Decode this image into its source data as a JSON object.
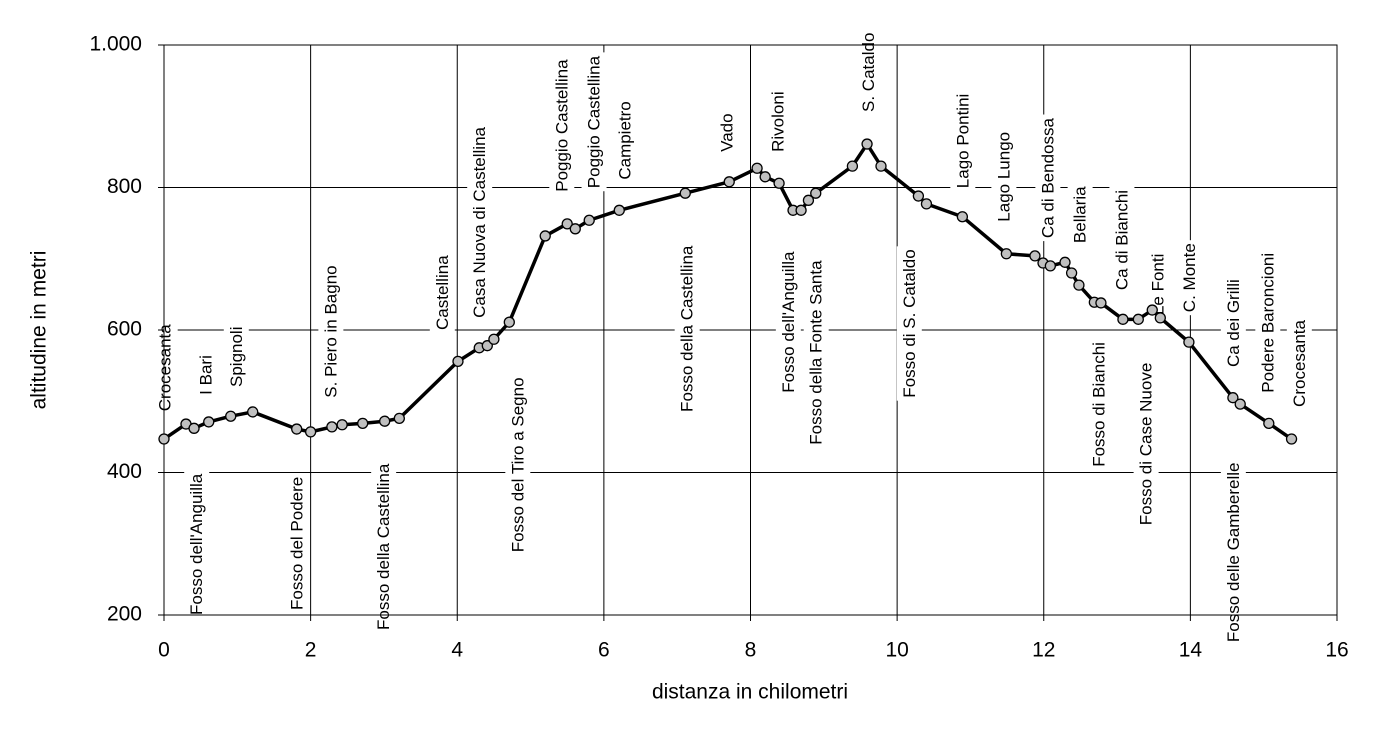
{
  "chart_data": {
    "type": "line",
    "xlabel": "distanza in chilometri",
    "ylabel": "altitudine  in metri",
    "x": [
      0,
      0.3,
      0.41,
      0.61,
      0.91,
      1.21,
      1.81,
      2.0,
      2.29,
      2.43,
      2.71,
      3.01,
      3.21,
      4.01,
      4.3,
      4.41,
      4.5,
      4.71,
      5.2,
      5.5,
      5.61,
      5.8,
      6.21,
      7.11,
      7.71,
      8.09,
      8.2,
      8.39,
      8.58,
      8.69,
      8.79,
      8.89,
      9.39,
      9.59,
      9.78,
      10.29,
      10.4,
      10.89,
      11.49,
      11.88,
      11.99,
      12.09,
      12.29,
      12.38,
      12.48,
      12.69,
      12.78,
      13.08,
      13.29,
      13.48,
      13.59,
      13.98,
      14.58,
      14.68,
      15.07,
      15.38
    ],
    "values": [
      447,
      468,
      462,
      471,
      479,
      485,
      461,
      457,
      464,
      467,
      469,
      472,
      476,
      556,
      575,
      578,
      587,
      611,
      732,
      749,
      742,
      754,
      768,
      792,
      808,
      827,
      815,
      806,
      768,
      768,
      782,
      792,
      830,
      861,
      830,
      788,
      777,
      759,
      707,
      704,
      694,
      690,
      695,
      680,
      663,
      639,
      638,
      615,
      615,
      628,
      617,
      583,
      505,
      496,
      469,
      447
    ],
    "color": "#000000",
    "marker_color": "#c0c0c0",
    "xlim": [
      0,
      16
    ],
    "xticks": [
      0,
      2,
      4,
      6,
      8,
      10,
      12,
      14,
      16
    ],
    "ylim": [
      200,
      1000
    ],
    "yticks": [
      200,
      400,
      600,
      800,
      {
        "value": 1000,
        "label": "1.000"
      }
    ],
    "grid": true,
    "annotations": [
      {
        "text": "Crocesanta",
        "x": 0.03,
        "y": 486
      },
      {
        "text": "Fosso dell'Anguilla",
        "x": 0.46,
        "y": 200
      },
      {
        "text": "I Bari",
        "x": 0.59,
        "y": 509
      },
      {
        "text": "Spignoli",
        "x": 1.0,
        "y": 520
      },
      {
        "text": "Fosso del Podere",
        "x": 1.83,
        "y": 207
      },
      {
        "text": "S. Piero in Bagno",
        "x": 2.29,
        "y": 505
      },
      {
        "text": "Fosso della Castellina",
        "x": 3.01,
        "y": 179
      },
      {
        "text": "Castellina",
        "x": 3.81,
        "y": 600
      },
      {
        "text": "Casa Nuova di Castellina",
        "x": 4.32,
        "y": 617
      },
      {
        "text": "Fosso del Tiro a Segno",
        "x": 4.84,
        "y": 288
      },
      {
        "text": "Poggio Castellina",
        "x": 5.44,
        "y": 794
      },
      {
        "text": "Poggio Castellina",
        "x": 5.88,
        "y": 799
      },
      {
        "text": "Campietro",
        "x": 6.3,
        "y": 811
      },
      {
        "text": "Fosso della Castellina",
        "x": 7.15,
        "y": 485
      },
      {
        "text": "Vado",
        "x": 7.69,
        "y": 850
      },
      {
        "text": "Rivoloni",
        "x": 8.39,
        "y": 850
      },
      {
        "text": "S. Cataldo",
        "x": 9.62,
        "y": 906
      },
      {
        "text": "Fosso dell'Anguilla",
        "x": 8.53,
        "y": 512
      },
      {
        "text": "Fosso della Fonte Santa",
        "x": 8.91,
        "y": 439
      },
      {
        "text": "Fosso di S. Cataldo",
        "x": 10.18,
        "y": 505
      },
      {
        "text": "Lago Pontini",
        "x": 10.91,
        "y": 799
      },
      {
        "text": "Lago Lungo",
        "x": 11.47,
        "y": 752
      },
      {
        "text": "Ca di Bendossa",
        "x": 12.07,
        "y": 729
      },
      {
        "text": "Bellaria",
        "x": 12.51,
        "y": 722
      },
      {
        "text": "Ca di Bianchi",
        "x": 13.08,
        "y": 656
      },
      {
        "text": "Fosso di Bianchi",
        "x": 12.77,
        "y": 408
      },
      {
        "text": "Le Fonti",
        "x": 13.57,
        "y": 621
      },
      {
        "text": "C. Monte",
        "x": 14.0,
        "y": 625
      },
      {
        "text": "Fosso di Case Nuove",
        "x": 13.41,
        "y": 326
      },
      {
        "text": "Ca dei Grilli",
        "x": 14.6,
        "y": 548
      },
      {
        "text": "Podere Baroncioni",
        "x": 15.07,
        "y": 512
      },
      {
        "text": "Crocesanta",
        "x": 15.5,
        "y": 492
      },
      {
        "text": "Fosso delle Gamberelle",
        "x": 14.6,
        "y": 162
      }
    ]
  }
}
